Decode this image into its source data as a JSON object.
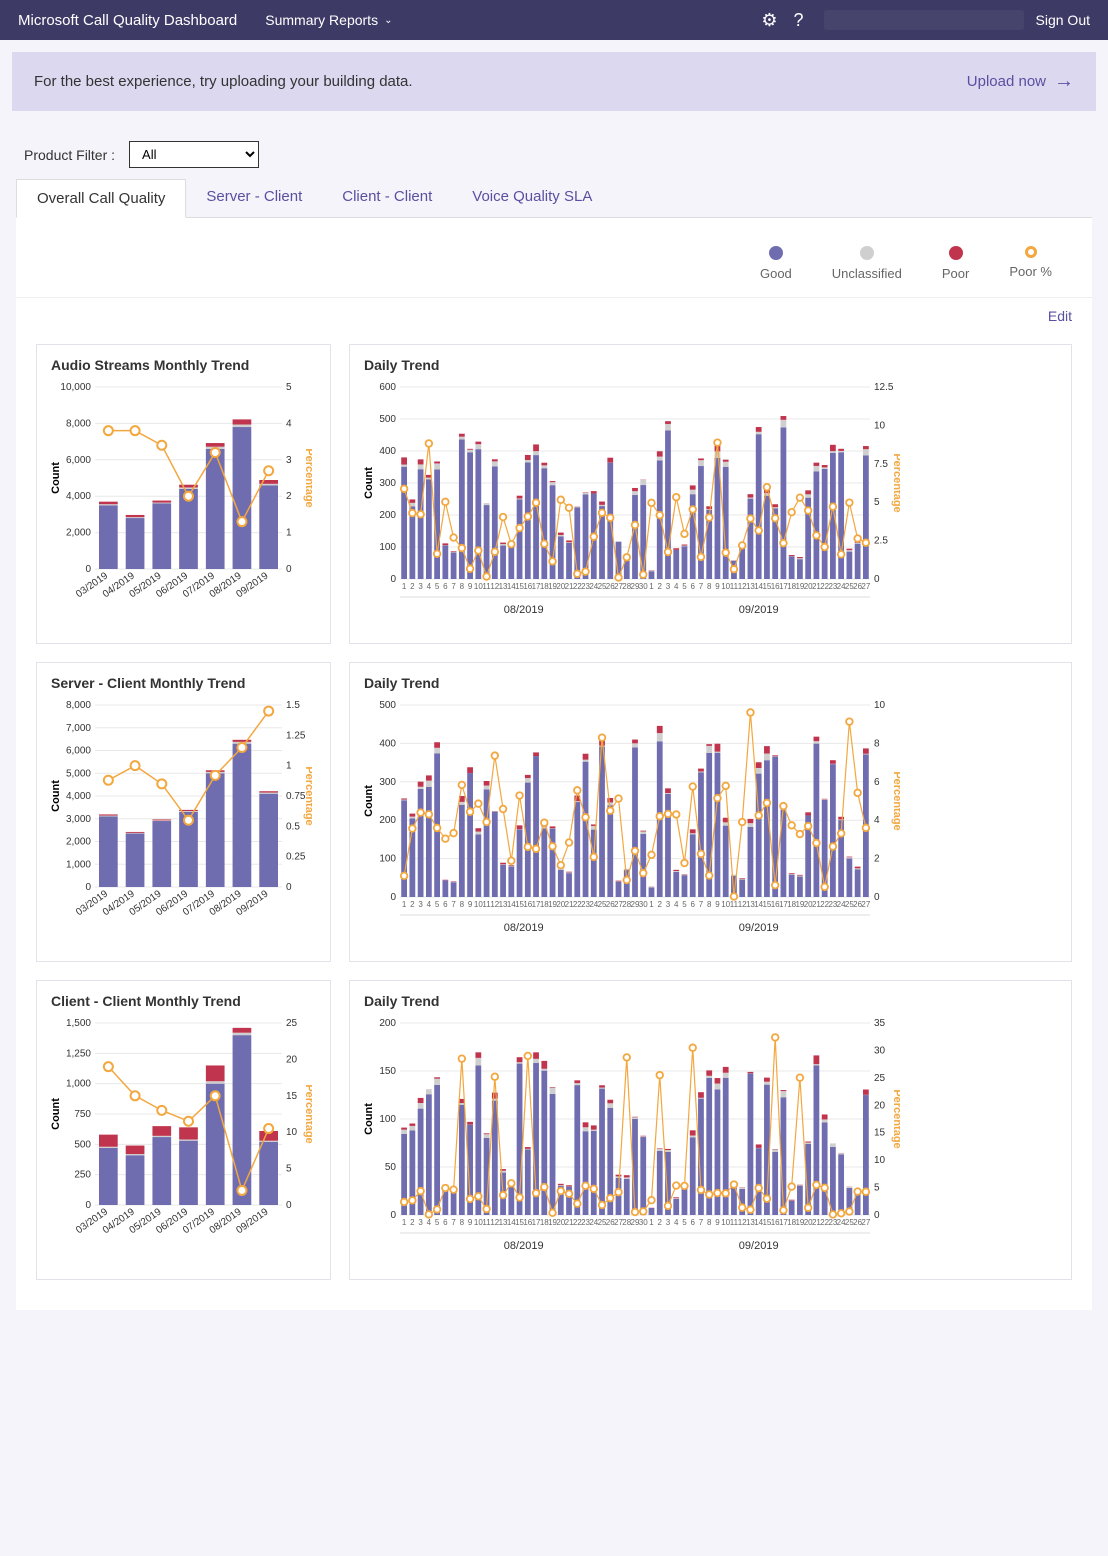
{
  "topbar": {
    "title": "Microsoft Call Quality Dashboard",
    "dropdown": "Summary Reports",
    "signout": "Sign Out"
  },
  "banner": {
    "text": "For the best experience, try uploading your building data.",
    "upload": "Upload now"
  },
  "filter": {
    "label": "Product Filter :",
    "value": "All"
  },
  "tabs": [
    "Overall Call Quality",
    "Server - Client",
    "Client - Client",
    "Voice Quality SLA"
  ],
  "activeTab": 0,
  "legend": [
    {
      "label": "Good",
      "color": "#6f6cb0"
    },
    {
      "label": "Unclassified",
      "color": "#cfcfcf"
    },
    {
      "label": "Poor",
      "color": "#c0344d"
    },
    {
      "label": "Poor %",
      "ring": "#f3a73f"
    }
  ],
  "editLabel": "Edit",
  "colors": {
    "good": "#6f6cb0",
    "unclassified": "#cfcfcf",
    "poor": "#c0344d",
    "line": "#f3a73f",
    "grid": "#e8e8e8",
    "axis": "#666"
  },
  "monthlyXLabels": [
    "03/2019",
    "04/2019",
    "05/2019",
    "06/2019",
    "07/2019",
    "08/2019",
    "09/2019"
  ],
  "rows": [
    {
      "monthlyTitle": "Audio Streams Monthly Trend",
      "dailyTitle": "Daily Trend",
      "monthly": {
        "ymax": 10000,
        "ystep": 2000,
        "ymaxR": 5,
        "ystepR": 1,
        "bars": [
          {
            "g": 3500,
            "u": 60,
            "p": 140
          },
          {
            "g": 2800,
            "u": 50,
            "p": 120
          },
          {
            "g": 3600,
            "u": 50,
            "p": 110
          },
          {
            "g": 4400,
            "u": 80,
            "p": 150
          },
          {
            "g": 6600,
            "u": 120,
            "p": 200
          },
          {
            "g": 7800,
            "u": 140,
            "p": 280
          },
          {
            "g": 4600,
            "u": 80,
            "p": 210
          }
        ],
        "line": [
          3.8,
          3.8,
          3.4,
          2.0,
          3.2,
          1.3,
          2.7
        ]
      },
      "daily": {
        "ymax": 600,
        "ystep": 100,
        "ymaxR": 12.5,
        "ystepR": 2.5,
        "monthLabels": [
          "08/2019",
          "09/2019"
        ],
        "nDays": 57,
        "gap": 30,
        "bars": "auto",
        "seed": 1
      }
    },
    {
      "monthlyTitle": "Server - Client Monthly Trend",
      "dailyTitle": "Daily Trend",
      "monthly": {
        "ymax": 8000,
        "ystep": 1000,
        "ymaxR": 1.5,
        "ystepR": 0.25,
        "bars": [
          {
            "g": 3100,
            "u": 40,
            "p": 50
          },
          {
            "g": 2350,
            "u": 30,
            "p": 40
          },
          {
            "g": 2900,
            "u": 30,
            "p": 40
          },
          {
            "g": 3300,
            "u": 40,
            "p": 50
          },
          {
            "g": 5000,
            "u": 60,
            "p": 70
          },
          {
            "g": 6300,
            "u": 80,
            "p": 90
          },
          {
            "g": 4100,
            "u": 50,
            "p": 60
          }
        ],
        "line": [
          0.88,
          1.0,
          0.85,
          0.55,
          0.92,
          1.15,
          1.45
        ]
      },
      "daily": {
        "ymax": 500,
        "ystep": 100,
        "ymaxR": 10,
        "ystepR": 2,
        "monthLabels": [
          "08/2019",
          "09/2019"
        ],
        "nDays": 57,
        "gap": 30,
        "bars": "auto",
        "seed": 2
      }
    },
    {
      "monthlyTitle": "Client - Client Monthly Trend",
      "dailyTitle": "Daily Trend",
      "monthly": {
        "ymax": 1500,
        "ystep": 250,
        "ymaxR": 25,
        "ystepR": 5,
        "bars": [
          {
            "g": 470,
            "u": 10,
            "p": 100
          },
          {
            "g": 410,
            "u": 10,
            "p": 70
          },
          {
            "g": 560,
            "u": 10,
            "p": 80
          },
          {
            "g": 530,
            "u": 10,
            "p": 100
          },
          {
            "g": 1000,
            "u": 20,
            "p": 130
          },
          {
            "g": 1400,
            "u": 20,
            "p": 40
          },
          {
            "g": 520,
            "u": 10,
            "p": 80
          }
        ],
        "line": [
          19,
          15,
          13,
          11.5,
          15,
          2,
          10.5
        ]
      },
      "daily": {
        "ymax": 200,
        "ystep": 50,
        "ymaxR": 35,
        "ystepR": 5,
        "monthLabels": [
          "08/2019",
          "09/2019"
        ],
        "nDays": 57,
        "gap": 30,
        "bars": "auto",
        "seed": 3
      }
    }
  ]
}
